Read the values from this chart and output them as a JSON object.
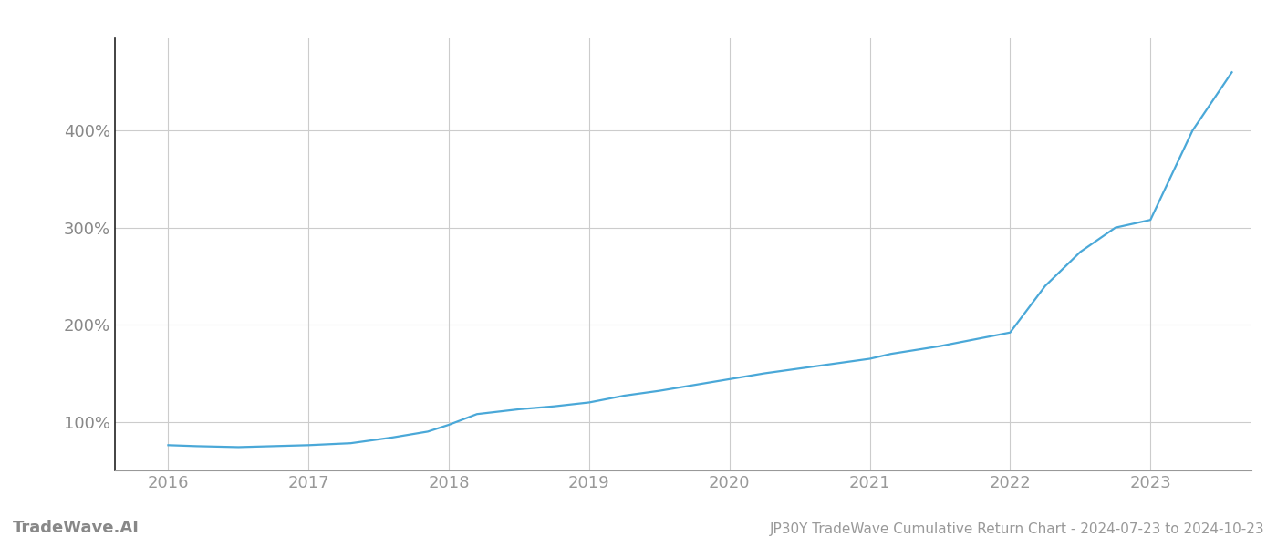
{
  "title": "JP30Y TradeWave Cumulative Return Chart - 2024-07-23 to 2024-10-23",
  "watermark": "TradeWave.AI",
  "line_color": "#4aa8d8",
  "background_color": "#ffffff",
  "grid_color": "#cccccc",
  "x_years": [
    2016,
    2017,
    2018,
    2019,
    2020,
    2021,
    2022,
    2023
  ],
  "x_data": [
    2016.0,
    2016.2,
    2016.5,
    2016.75,
    2017.0,
    2017.3,
    2017.6,
    2017.85,
    2018.0,
    2018.2,
    2018.5,
    2018.75,
    2019.0,
    2019.25,
    2019.5,
    2019.75,
    2020.0,
    2020.25,
    2020.5,
    2020.75,
    2021.0,
    2021.15,
    2021.5,
    2021.75,
    2022.0,
    2022.25,
    2022.5,
    2022.75,
    2023.0,
    2023.3,
    2023.58
  ],
  "y_data": [
    76,
    75,
    74,
    75,
    76,
    78,
    84,
    90,
    97,
    108,
    113,
    116,
    120,
    127,
    132,
    138,
    144,
    150,
    155,
    160,
    165,
    170,
    178,
    185,
    192,
    240,
    275,
    300,
    308,
    400,
    460
  ],
  "ylim": [
    50,
    495
  ],
  "xlim": [
    2015.62,
    2023.72
  ],
  "yticks": [
    100,
    200,
    300,
    400
  ],
  "ytick_labels": [
    "100%",
    "200%",
    "300%",
    "400%"
  ],
  "title_fontsize": 11,
  "tick_fontsize": 13,
  "watermark_fontsize": 13,
  "line_width": 1.6,
  "left_spine_color": "#222222",
  "bottom_spine_color": "#999999"
}
